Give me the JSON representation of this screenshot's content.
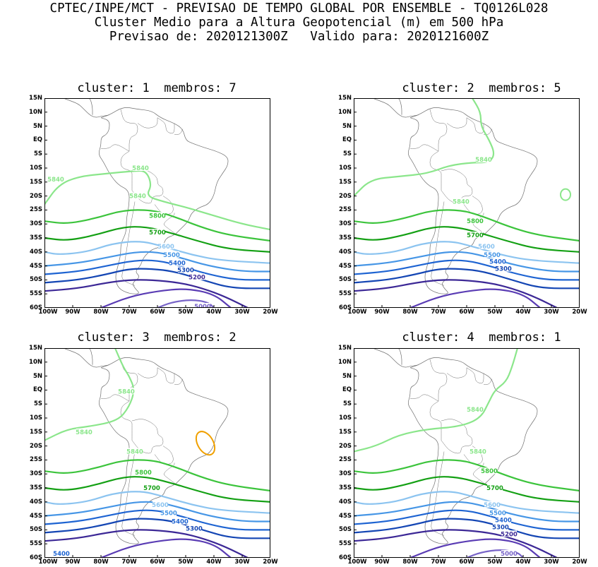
{
  "header": {
    "line1": "CPTEC/INPE/MCT - PREVISAO DE TEMPO GLOBAL POR ENSEMBLE - TQ0126L028",
    "line2": "Cluster Medio para a Altura Geopotencial (m) em 500 hPa",
    "line3": "Previsao de: 2020121300Z   Valido para: 2020121600Z"
  },
  "colors": {
    "c5840": "#8be68b",
    "c5800": "#3cc43c",
    "c5700": "#14a014",
    "c5600": "#8cc4f0",
    "c5500": "#4696e6",
    "c5400": "#1e64d2",
    "c5300": "#1446b4",
    "c5200": "#3c2896",
    "c5100": "#5a3cb4",
    "c5000": "#7864c8",
    "anomaly": "#f0a000",
    "coast": "#6e6e6e"
  },
  "chart_data": [
    {
      "type": "contour",
      "title": "cluster: 1  membros: 7",
      "xlim": [
        -100,
        -20
      ],
      "ylim": [
        -60,
        15
      ],
      "x_ticks": [
        "100W",
        "90W",
        "80W",
        "70W",
        "60W",
        "50W",
        "40W",
        "30W",
        "20W"
      ],
      "y_ticks": [
        "15N",
        "10N",
        "5N",
        "EQ",
        "5S",
        "10S",
        "15S",
        "20S",
        "25S",
        "30S",
        "35S",
        "40S",
        "45S",
        "50S",
        "55S",
        "60S"
      ],
      "contours": [
        {
          "level": 5840,
          "labels": [
            {
              "text": "5840",
              "lon": -96,
              "lat": -14
            },
            {
              "text": "5840",
              "lon": -66,
              "lat": -10
            },
            {
              "text": "5840",
              "lon": -67,
              "lat": -20
            }
          ]
        },
        {
          "level": 5800,
          "labels": [
            {
              "text": "5800",
              "lon": -60,
              "lat": -27
            }
          ]
        },
        {
          "level": 5700,
          "labels": [
            {
              "text": "5700",
              "lon": -60,
              "lat": -33
            }
          ]
        },
        {
          "level": 5600,
          "labels": [
            {
              "text": "5600",
              "lon": -57,
              "lat": -38
            }
          ]
        },
        {
          "level": 5500,
          "labels": [
            {
              "text": "5500",
              "lon": -55,
              "lat": -41
            }
          ]
        },
        {
          "level": 5400,
          "labels": [
            {
              "text": "5400",
              "lon": -53,
              "lat": -44
            }
          ]
        },
        {
          "level": 5300,
          "labels": [
            {
              "text": "5300",
              "lon": -50,
              "lat": -46.5
            }
          ]
        },
        {
          "level": 5200,
          "labels": [
            {
              "text": "5200",
              "lon": -46,
              "lat": -49
            }
          ]
        },
        {
          "level": 5100,
          "labels": []
        },
        {
          "level": 5000,
          "labels": [
            {
              "text": "5000",
              "lon": -44,
              "lat": -59.5
            }
          ]
        }
      ]
    },
    {
      "type": "contour",
      "title": "cluster: 2  membros: 5",
      "xlim": [
        -100,
        -20
      ],
      "ylim": [
        -60,
        15
      ],
      "x_ticks": [
        "100W",
        "90W",
        "80W",
        "70W",
        "60W",
        "50W",
        "40W",
        "30W",
        "20W"
      ],
      "y_ticks": [
        "15N",
        "10N",
        "5N",
        "EQ",
        "5S",
        "10S",
        "15S",
        "20S",
        "25S",
        "30S",
        "35S",
        "40S",
        "45S",
        "50S",
        "55S",
        "60S"
      ],
      "contours": [
        {
          "level": 5840,
          "labels": [
            {
              "text": "5840",
              "lon": -54,
              "lat": -7
            },
            {
              "text": "5840",
              "lon": -62,
              "lat": -22
            }
          ]
        },
        {
          "level": 5800,
          "labels": [
            {
              "text": "5800",
              "lon": -57,
              "lat": -29
            }
          ]
        },
        {
          "level": 5700,
          "labels": [
            {
              "text": "5700",
              "lon": -57,
              "lat": -34
            }
          ]
        },
        {
          "level": 5600,
          "labels": [
            {
              "text": "5600",
              "lon": -53,
              "lat": -38
            }
          ]
        },
        {
          "level": 5500,
          "labels": [
            {
              "text": "5500",
              "lon": -51,
              "lat": -41
            }
          ]
        },
        {
          "level": 5400,
          "labels": [
            {
              "text": "5400",
              "lon": -49,
              "lat": -43.5
            }
          ]
        },
        {
          "level": 5300,
          "labels": [
            {
              "text": "5300",
              "lon": -47,
              "lat": -46
            }
          ]
        },
        {
          "level": 5200,
          "labels": []
        },
        {
          "level": 5100,
          "labels": []
        }
      ]
    },
    {
      "type": "contour",
      "title": "cluster: 3  membros: 2",
      "xlim": [
        -100,
        -20
      ],
      "ylim": [
        -60,
        15
      ],
      "x_ticks": [
        "100W",
        "90W",
        "80W",
        "70W",
        "60W",
        "50W",
        "40W",
        "30W",
        "20W"
      ],
      "y_ticks": [
        "15N",
        "10N",
        "5N",
        "EQ",
        "5S",
        "10S",
        "15S",
        "20S",
        "25S",
        "30S",
        "35S",
        "40S",
        "45S",
        "50S",
        "55S",
        "60S"
      ],
      "contours": [
        {
          "level": 5840,
          "labels": [
            {
              "text": "5840",
              "lon": -71,
              "lat": -0.5
            },
            {
              "text": "5840",
              "lon": -86,
              "lat": -15
            },
            {
              "text": "5840",
              "lon": -68,
              "lat": -22
            }
          ]
        },
        {
          "level": 5800,
          "labels": [
            {
              "text": "5800",
              "lon": -65,
              "lat": -29.5
            }
          ]
        },
        {
          "level": 5700,
          "labels": [
            {
              "text": "5700",
              "lon": -62,
              "lat": -35
            }
          ]
        },
        {
          "level": 5600,
          "labels": [
            {
              "text": "5600",
              "lon": -59,
              "lat": -41
            }
          ]
        },
        {
          "level": 5500,
          "labels": [
            {
              "text": "5500",
              "lon": -56,
              "lat": -44
            }
          ]
        },
        {
          "level": 5400,
          "labels": [
            {
              "text": "5400",
              "lon": -52,
              "lat": -47
            },
            {
              "text": "5400",
              "lon": -94,
              "lat": -58.5
            }
          ]
        },
        {
          "level": 5300,
          "labels": [
            {
              "text": "5300",
              "lon": -47,
              "lat": -49.5
            }
          ]
        },
        {
          "level": 5200,
          "labels": []
        },
        {
          "level": 5100,
          "labels": []
        }
      ],
      "anomaly": {
        "color": "orange",
        "lon": -43,
        "lat": -19
      }
    },
    {
      "type": "contour",
      "title": "cluster: 4  membros: 1",
      "xlim": [
        -100,
        -20
      ],
      "ylim": [
        -60,
        15
      ],
      "x_ticks": [
        "100W",
        "90W",
        "80W",
        "70W",
        "60W",
        "50W",
        "40W",
        "30W",
        "20W"
      ],
      "y_ticks": [
        "15N",
        "10N",
        "5N",
        "EQ",
        "5S",
        "10S",
        "15S",
        "20S",
        "25S",
        "30S",
        "35S",
        "40S",
        "45S",
        "50S",
        "55S",
        "60S"
      ],
      "contours": [
        {
          "level": 5840,
          "labels": [
            {
              "text": "5840",
              "lon": -57,
              "lat": -7
            },
            {
              "text": "5840",
              "lon": -56,
              "lat": -22
            }
          ]
        },
        {
          "level": 5800,
          "labels": [
            {
              "text": "5800",
              "lon": -52,
              "lat": -29
            }
          ]
        },
        {
          "level": 5700,
          "labels": [
            {
              "text": "5700",
              "lon": -50,
              "lat": -35
            }
          ]
        },
        {
          "level": 5600,
          "labels": [
            {
              "text": "5600",
              "lon": -51,
              "lat": -41
            }
          ]
        },
        {
          "level": 5500,
          "labels": [
            {
              "text": "5500",
              "lon": -49,
              "lat": -44
            }
          ]
        },
        {
          "level": 5400,
          "labels": [
            {
              "text": "5400",
              "lon": -47,
              "lat": -46.5
            }
          ]
        },
        {
          "level": 5300,
          "labels": [
            {
              "text": "5300",
              "lon": -48,
              "lat": -49
            }
          ]
        },
        {
          "level": 5200,
          "labels": [
            {
              "text": "5200",
              "lon": -45,
              "lat": -51.5
            }
          ]
        },
        {
          "level": 5100,
          "labels": []
        },
        {
          "level": 5000,
          "labels": [
            {
              "text": "5000",
              "lon": -45,
              "lat": -58.5
            }
          ]
        }
      ]
    }
  ]
}
